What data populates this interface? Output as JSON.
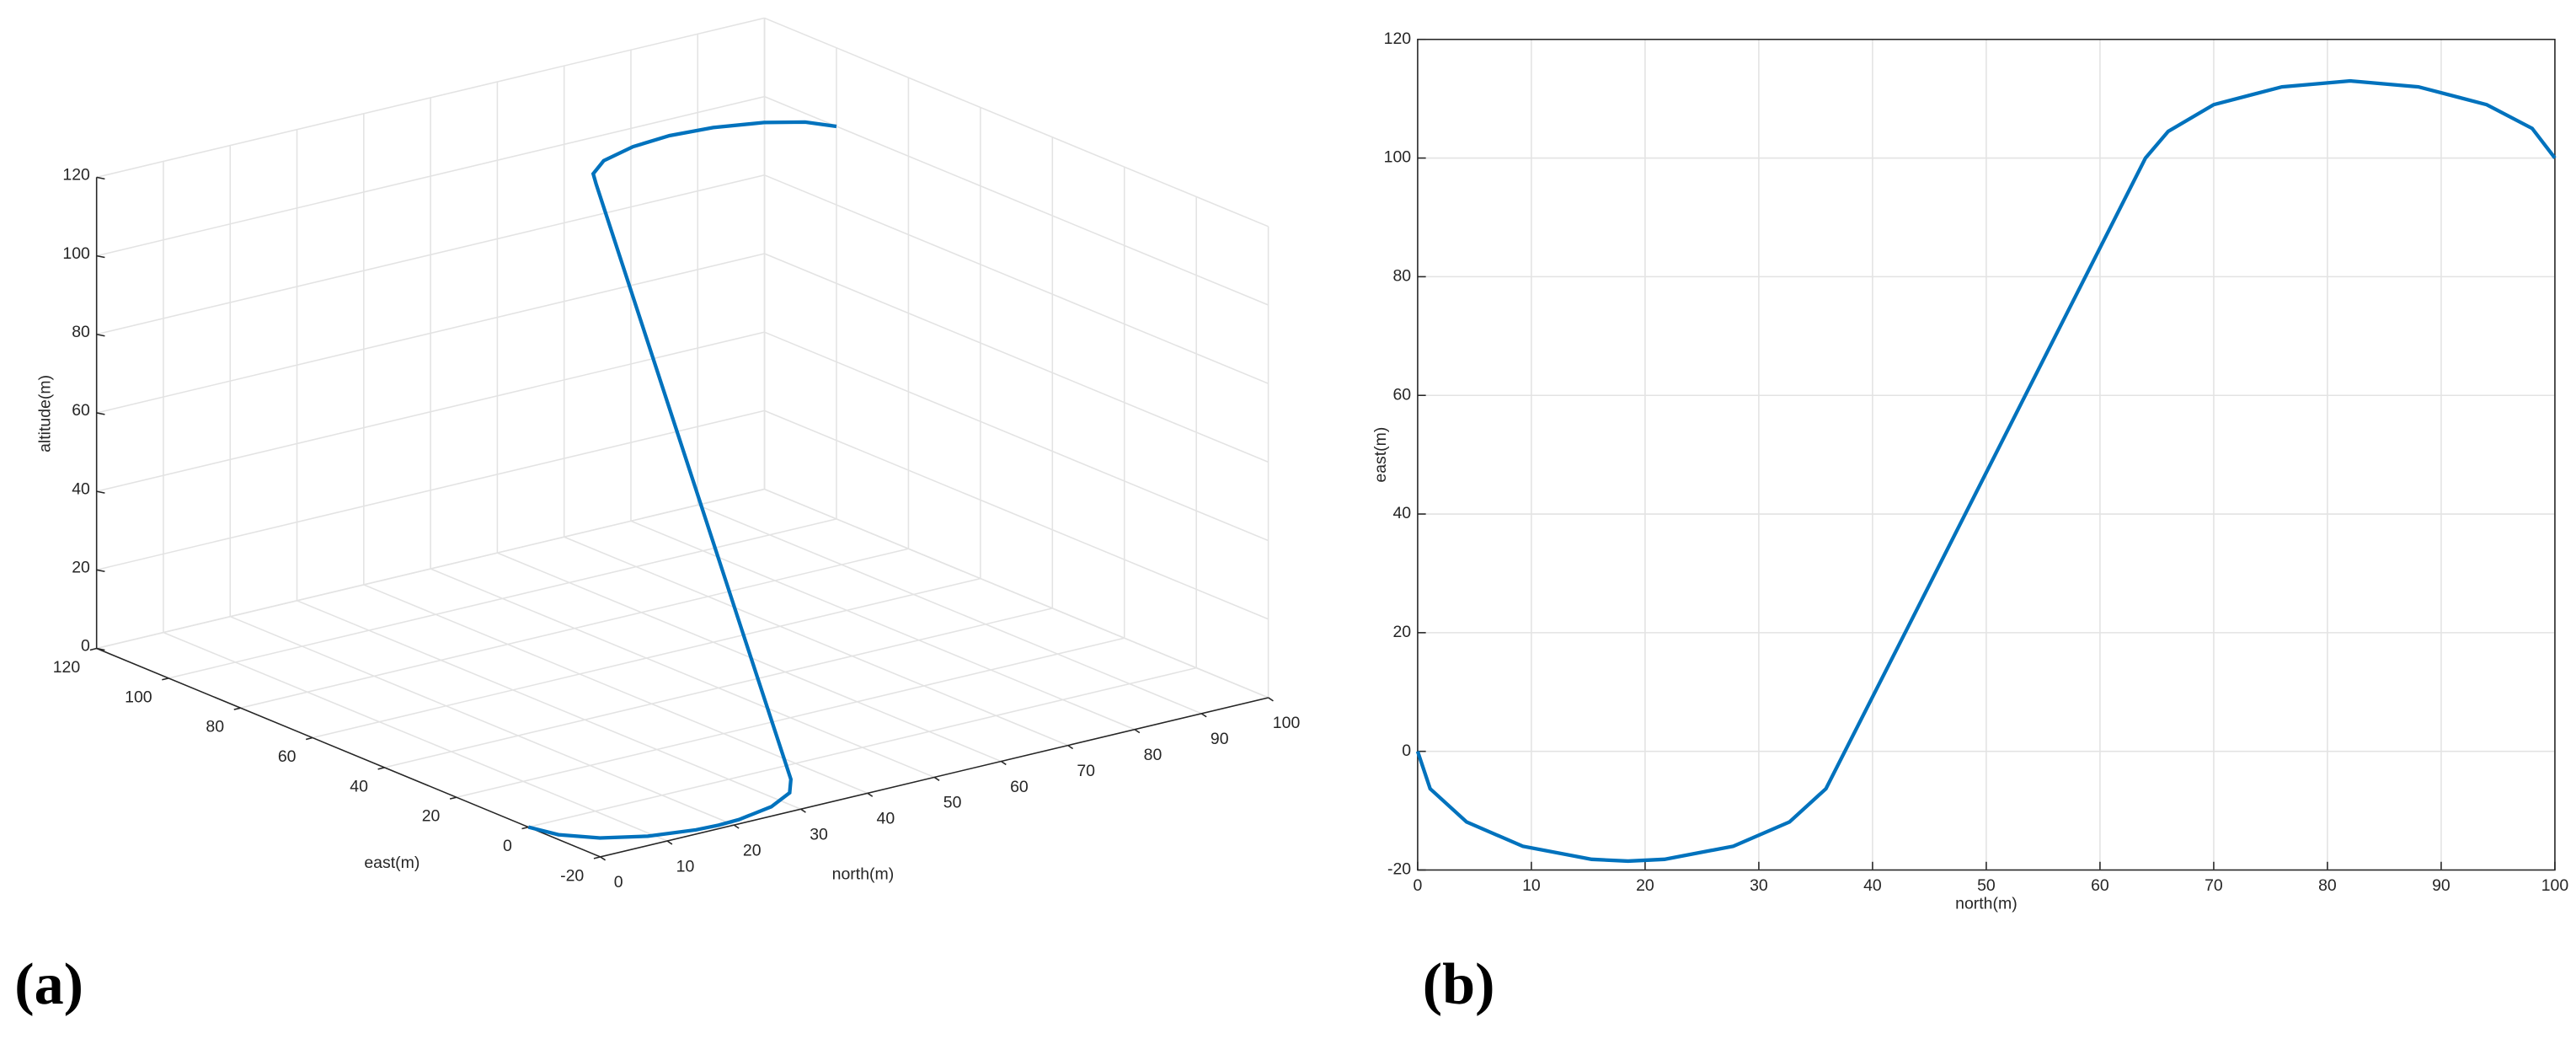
{
  "chart_data": [
    {
      "type": "line3d",
      "panel_label": "(a)",
      "xlabel": "north(m)",
      "ylabel": "east(m)",
      "zlabel": "altitude(m)",
      "x": [
        0,
        1.1,
        4.3,
        9.25,
        15.3,
        18.5,
        21.7,
        27.75,
        32.7,
        35.9,
        43,
        50,
        57,
        64,
        66,
        70,
        76,
        82,
        88,
        94,
        98,
        100
      ],
      "y": [
        0,
        -6.3,
        -11.9,
        -16,
        -18.2,
        -18.5,
        -18.2,
        -16,
        -11.9,
        -6.3,
        20.5,
        47,
        73.5,
        100,
        104.5,
        109,
        112,
        113,
        112,
        109,
        105,
        100
      ],
      "z": [
        0,
        0,
        0,
        0,
        0,
        0,
        0,
        0,
        0,
        0,
        25,
        50,
        75,
        100,
        100,
        100,
        100,
        100,
        100,
        100,
        100,
        100
      ],
      "color": "#0072bd",
      "grid": true,
      "xlim": [
        0,
        100
      ],
      "xticks": [
        0,
        10,
        20,
        30,
        40,
        50,
        60,
        70,
        80,
        90,
        100
      ],
      "ylim": [
        -20,
        120
      ],
      "yticks": [
        -20,
        0,
        20,
        40,
        60,
        80,
        100,
        120
      ],
      "zlim": [
        0,
        120
      ],
      "zticks": [
        0,
        20,
        40,
        60,
        80,
        100,
        120
      ]
    },
    {
      "type": "line",
      "panel_label": "(b)",
      "xlabel": "north(m)",
      "ylabel": "east(m)",
      "x": [
        0,
        1.1,
        4.3,
        9.25,
        15.3,
        18.5,
        21.7,
        27.75,
        32.7,
        35.9,
        43,
        50,
        57,
        64,
        66,
        70,
        76,
        82,
        88,
        94,
        98,
        100
      ],
      "values": [
        0,
        -6.3,
        -11.9,
        -16,
        -18.2,
        -18.5,
        -18.2,
        -16,
        -11.9,
        -6.3,
        20.5,
        47,
        73.5,
        100,
        104.5,
        109,
        112,
        113,
        112,
        109,
        105,
        100
      ],
      "color": "#0072bd",
      "grid": true,
      "xlim": [
        0,
        100
      ],
      "xticks": [
        0,
        10,
        20,
        30,
        40,
        50,
        60,
        70,
        80,
        90,
        100
      ],
      "ylim": [
        -20,
        120
      ],
      "yticks": [
        -20,
        0,
        20,
        40,
        60,
        80,
        100,
        120
      ]
    }
  ]
}
